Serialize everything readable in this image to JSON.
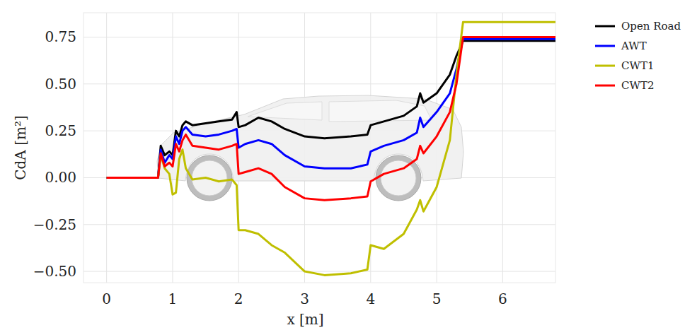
{
  "chart_data": {
    "type": "line",
    "x_label": "x [m]",
    "y_label": "CdA [m²]",
    "x": [
      0,
      0.78,
      0.82,
      0.88,
      0.95,
      1.0,
      1.05,
      1.1,
      1.15,
      1.2,
      1.3,
      1.5,
      1.7,
      1.9,
      1.97,
      2.0,
      2.1,
      2.3,
      2.5,
      2.7,
      3.0,
      3.3,
      3.7,
      3.95,
      4.0,
      4.2,
      4.5,
      4.7,
      4.75,
      4.8,
      5.0,
      5.2,
      5.3,
      5.4,
      6.8
    ],
    "series": [
      {
        "name": "Open Road",
        "color": "#000000",
        "values": [
          0,
          0,
          0.17,
          0.12,
          0.14,
          0.12,
          0.25,
          0.22,
          0.28,
          0.3,
          0.28,
          0.29,
          0.3,
          0.31,
          0.35,
          0.27,
          0.28,
          0.32,
          0.3,
          0.26,
          0.22,
          0.21,
          0.22,
          0.23,
          0.28,
          0.3,
          0.33,
          0.38,
          0.45,
          0.4,
          0.45,
          0.55,
          0.65,
          0.73,
          0.73
        ]
      },
      {
        "name": "AWT",
        "color": "#0000ff",
        "values": [
          0,
          0,
          0.15,
          0.08,
          0.12,
          0.1,
          0.22,
          0.18,
          0.25,
          0.27,
          0.23,
          0.22,
          0.23,
          0.25,
          0.26,
          0.16,
          0.18,
          0.2,
          0.18,
          0.12,
          0.06,
          0.05,
          0.05,
          0.07,
          0.14,
          0.17,
          0.2,
          0.24,
          0.32,
          0.27,
          0.35,
          0.45,
          0.58,
          0.74,
          0.74
        ]
      },
      {
        "name": "CWT1",
        "color": "#bfbf00",
        "values": [
          0,
          0,
          0.12,
          0.05,
          0.02,
          -0.09,
          -0.08,
          0.1,
          0.15,
          0.05,
          -0.01,
          0,
          -0.02,
          -0.01,
          -0.04,
          -0.28,
          -0.28,
          -0.3,
          -0.36,
          -0.4,
          -0.5,
          -0.52,
          -0.51,
          -0.49,
          -0.36,
          -0.38,
          -0.3,
          -0.17,
          -0.12,
          -0.18,
          -0.05,
          0.2,
          0.55,
          0.83,
          0.83
        ]
      },
      {
        "name": "CWT2",
        "color": "#ff0000",
        "values": [
          0,
          0,
          0.13,
          0.06,
          0.08,
          0.06,
          0.18,
          0.14,
          0.2,
          0.23,
          0.17,
          0.16,
          0.15,
          0.17,
          0.18,
          0.02,
          0.03,
          0.05,
          0.02,
          -0.05,
          -0.11,
          -0.12,
          -0.11,
          -0.1,
          -0.02,
          0.02,
          0.05,
          0.1,
          0.17,
          0.13,
          0.22,
          0.35,
          0.5,
          0.75,
          0.75
        ]
      }
    ],
    "xlim": [
      -0.35,
      6.8
    ],
    "ylim": [
      -0.56,
      0.88
    ],
    "xticks": [
      0,
      1,
      2,
      3,
      4,
      5,
      6
    ],
    "yticks": [
      {
        "value": -0.5,
        "label": "−0.50"
      },
      {
        "value": -0.25,
        "label": "−0.25"
      },
      {
        "value": 0,
        "label": "0.00"
      },
      {
        "value": 0.25,
        "label": "0.25"
      },
      {
        "value": 0.5,
        "label": "0.50"
      },
      0.75
    ],
    "grid": true,
    "legend": "right"
  }
}
